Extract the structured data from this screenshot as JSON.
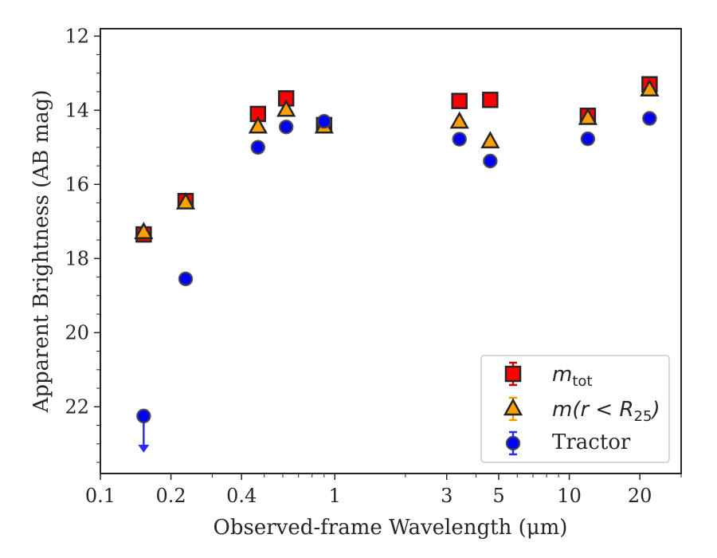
{
  "chart_data": {
    "type": "scatter",
    "title": "",
    "xlabel": "Observed-frame Wavelength (μm)",
    "ylabel": "Apparent Brightness (AB mag)",
    "xscale": "log",
    "yaxis_inverted": true,
    "xlim": [
      0.1,
      30
    ],
    "ylim": [
      23.8,
      11.8
    ],
    "xticks": [
      {
        "value": 0.1,
        "label": "0.1"
      },
      {
        "value": 0.2,
        "label": "0.2"
      },
      {
        "value": 0.4,
        "label": "0.4"
      },
      {
        "value": 1,
        "label": "1"
      },
      {
        "value": 3,
        "label": "3"
      },
      {
        "value": 5,
        "label": "5"
      },
      {
        "value": 10,
        "label": "10"
      },
      {
        "value": 20,
        "label": "20"
      }
    ],
    "yticks": [
      12,
      14,
      16,
      18,
      20,
      22
    ],
    "grid": false,
    "legend_position": "lower right",
    "legend": [
      {
        "math": "m",
        "sub": "tot",
        "rest": ""
      },
      {
        "math": "m(r < R",
        "sub": "25",
        "rest": ")"
      },
      {
        "text": "Tractor"
      }
    ],
    "series": [
      {
        "marker": "square",
        "color": "#ff0000",
        "edge": "#262626",
        "x": [
          0.153,
          0.231,
          0.47,
          0.62,
          0.9,
          3.4,
          4.6,
          12.0,
          22.0
        ],
        "y": [
          17.35,
          16.45,
          14.1,
          13.68,
          14.4,
          13.75,
          13.72,
          14.15,
          13.3
        ]
      },
      {
        "marker": "triangle",
        "color": "#ff9f00",
        "edge": "#262626",
        "x": [
          0.153,
          0.231,
          0.47,
          0.62,
          0.9,
          3.4,
          4.6,
          12.0,
          22.0
        ],
        "y": [
          17.3,
          16.5,
          14.45,
          14.0,
          14.45,
          14.32,
          14.85,
          14.22,
          13.45
        ]
      },
      {
        "marker": "circle",
        "color": "#0000ff",
        "edge": "#404040",
        "x": [
          0.153,
          0.231,
          0.47,
          0.62,
          0.9,
          3.4,
          4.6,
          12.0,
          22.0
        ],
        "y": [
          22.25,
          18.55,
          15.0,
          14.45,
          14.3,
          14.78,
          15.37,
          14.77,
          14.22
        ],
        "upper_limit": [
          true,
          false,
          false,
          false,
          false,
          false,
          false,
          false,
          false
        ]
      }
    ]
  }
}
